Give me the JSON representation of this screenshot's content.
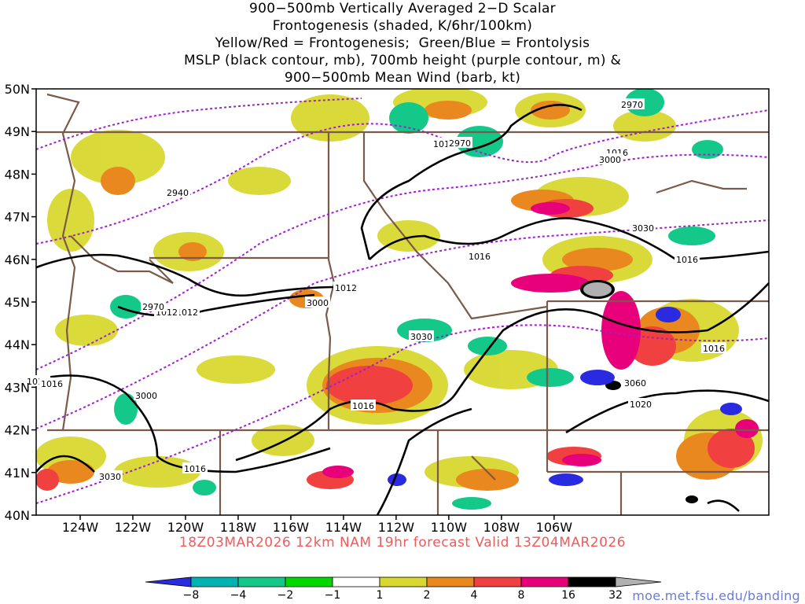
{
  "title_lines": [
    "900−500mb Vertically Averaged 2−D Scalar",
    "Frontogenesis (shaded, K/6hr/100km)",
    "Yellow/Red = Frontogenesis;  Green/Blue = Frontolysis",
    "MSLP (black contour, mb), 700mb height (purple contour, m) &",
    "900−500mb Mean Wind (barb, kt)"
  ],
  "valid_line": "18Z03MAR2026 12km NAM 19hr forecast Valid 13Z04MAR2026",
  "credit": "moe.met.fsu.edu/banding",
  "lat_labels": [
    "50N",
    "49N",
    "48N",
    "47N",
    "46N",
    "45N",
    "44N",
    "43N",
    "42N",
    "41N",
    "40N"
  ],
  "lon_labels": [
    "124W",
    "122W",
    "120W",
    "118W",
    "116W",
    "114W",
    "112W",
    "110W",
    "108W",
    "106W"
  ],
  "colorbar": {
    "labels": [
      "−8",
      "−4",
      "−2",
      "−1",
      "1",
      "2",
      "4",
      "8",
      "16",
      "32"
    ],
    "colors": [
      "#2a2ae0",
      "#00b3b3",
      "#13c888",
      "#00d800",
      "#ffffff",
      "#d8d830",
      "#e8881e",
      "#f04040",
      "#e8007a",
      "#000000",
      "#b0b0b0"
    ]
  },
  "mslp_labels": [
    "1016",
    "1012",
    "1016",
    "1012",
    "1012",
    "1016",
    "1016",
    "1016",
    "1020",
    "1016",
    "1016",
    "1012",
    "1016"
  ],
  "height_labels": [
    "2970",
    "2940",
    "2970",
    "3000",
    "3030",
    "3030",
    "3060",
    "3000",
    "3030",
    "3000",
    "2970"
  ]
}
